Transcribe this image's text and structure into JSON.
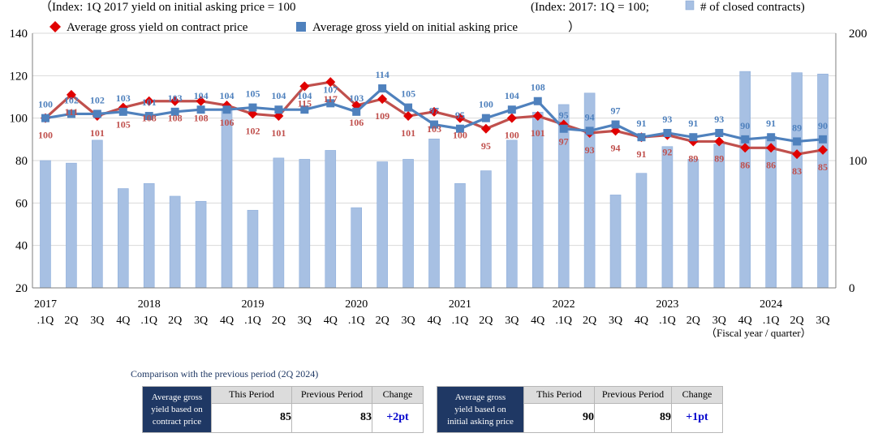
{
  "chart_data": {
    "type": "bar+line",
    "left_axis_caption": "（Index: 1Q 2017 yield on initial asking price = 100",
    "right_axis_caption": "(Index: 2017: 1Q = 100;",
    "bar_legend_label": "# of closed contracts)",
    "x_axis_caption": "（Fiscal year / quarter）",
    "left_axis": {
      "min": 20,
      "max": 140,
      "ticks": [
        "20",
        "40",
        "60",
        "80",
        "100",
        "120",
        "140"
      ]
    },
    "right_axis": {
      "min": 0,
      "max": 200,
      "ticks": [
        "0",
        "100",
        "200"
      ]
    },
    "quarters": [
      "2017.1Q",
      "2Q",
      "3Q",
      "4Q",
      "2018.1Q",
      "2Q",
      "3Q",
      "4Q",
      "2019.1Q",
      "2Q",
      "3Q",
      "4Q",
      "2020.1Q",
      "2Q",
      "3Q",
      "4Q",
      "2021.1Q",
      "2Q",
      "3Q",
      "4Q",
      "2022.1Q",
      "2Q",
      "3Q",
      "4Q",
      "2023.1Q",
      "2Q",
      "3Q",
      "4Q",
      "2024.1Q",
      "2Q",
      "3Q"
    ],
    "tick_labels": [
      {
        "line1": "2017",
        "line2": ".1Q"
      },
      {
        "line1": "",
        "line2": "2Q"
      },
      {
        "line1": "",
        "line2": "3Q"
      },
      {
        "line1": "",
        "line2": "4Q"
      },
      {
        "line1": "2018",
        "line2": ".1Q"
      },
      {
        "line1": "",
        "line2": "2Q"
      },
      {
        "line1": "",
        "line2": "3Q"
      },
      {
        "line1": "",
        "line2": "4Q"
      },
      {
        "line1": "2019",
        "line2": ".1Q"
      },
      {
        "line1": "",
        "line2": "2Q"
      },
      {
        "line1": "",
        "line2": "3Q"
      },
      {
        "line1": "",
        "line2": "4Q"
      },
      {
        "line1": "2020",
        "line2": ".1Q"
      },
      {
        "line1": "",
        "line2": "2Q"
      },
      {
        "line1": "",
        "line2": "3Q"
      },
      {
        "line1": "",
        "line2": "4Q"
      },
      {
        "line1": "2021",
        "line2": ".1Q"
      },
      {
        "line1": "",
        "line2": "2Q"
      },
      {
        "line1": "",
        "line2": "3Q"
      },
      {
        "line1": "",
        "line2": "4Q"
      },
      {
        "line1": "2022",
        "line2": ".1Q"
      },
      {
        "line1": "",
        "line2": "2Q"
      },
      {
        "line1": "",
        "line2": "3Q"
      },
      {
        "line1": "",
        "line2": "4Q"
      },
      {
        "line1": "2023",
        "line2": ".1Q"
      },
      {
        "line1": "",
        "line2": "2Q"
      },
      {
        "line1": "",
        "line2": "3Q"
      },
      {
        "line1": "",
        "line2": "4Q"
      },
      {
        "line1": "2024",
        "line2": ".1Q"
      },
      {
        "line1": "",
        "line2": "2Q"
      },
      {
        "line1": "",
        "line2": "3Q"
      }
    ],
    "series": [
      {
        "name": "Average gross yield on contract price",
        "kind": "line",
        "marker": "diamond",
        "color": "#c0504d",
        "marker_color": "#e00000",
        "label_color": "#c0504d",
        "values": [
          100,
          111,
          101,
          105,
          108,
          108,
          108,
          106,
          102,
          101,
          115,
          117,
          106,
          109,
          101,
          103,
          100,
          95,
          100,
          101,
          97,
          93,
          94,
          91,
          92,
          89,
          89,
          86,
          86,
          83,
          85
        ]
      },
      {
        "name": "Average gross yield on initial asking price",
        "kind": "line",
        "marker": "square",
        "color": "#4f81bd",
        "marker_color": "#4f81bd",
        "label_color": "#4f81bd",
        "values": [
          100,
          102,
          102,
          103,
          101,
          103,
          104,
          104,
          105,
          104,
          104,
          107,
          103,
          114,
          105,
          97,
          95,
          100,
          104,
          108,
          95,
          94,
          97,
          91,
          93,
          91,
          93,
          90,
          91,
          89,
          90
        ]
      },
      {
        "name": "# of closed contracts",
        "kind": "bar",
        "axis": "right",
        "color": "#a7c0e3",
        "values": [
          100,
          98,
          116,
          78,
          82,
          72,
          68,
          141,
          61,
          102,
          101,
          108,
          63,
          99,
          101,
          117,
          82,
          92,
          116,
          138,
          144,
          153,
          73,
          90,
          111,
          101,
          113,
          170,
          119,
          169,
          168
        ]
      }
    ],
    "contract_line_labels": [
      "100",
      "111",
      "101",
      "105",
      "108",
      "108",
      "108",
      "106",
      "102",
      "101",
      "115",
      "117",
      "106",
      "109",
      "101",
      "103",
      "100",
      "95",
      "100",
      "101",
      "97",
      "93",
      "94",
      "91",
      "92",
      "89",
      "89",
      "86",
      "86",
      "83",
      "85"
    ],
    "asking_line_labels": [
      "100",
      "102",
      "102",
      "103",
      "101",
      "103",
      "104",
      "104",
      "105",
      "104",
      "104",
      "107",
      "103",
      "114",
      "105",
      "97",
      "95",
      "100",
      "104",
      "108",
      "95",
      "94",
      "97",
      "91",
      "93",
      "91",
      "93",
      "90",
      "91",
      "89",
      "90"
    ]
  },
  "comparison": {
    "caption": "Comparison with the previous period (2Q 2024)",
    "col_this": "This Period",
    "col_prev": "Previous Period",
    "col_change": "Change",
    "contract": {
      "label_line1": "Average gross",
      "label_line2": "yield based on",
      "label_line3": "contract price",
      "this": "85",
      "prev": "83",
      "change": "+2pt"
    },
    "asking": {
      "label_line1": "Average gross",
      "label_line2": "yield based on",
      "label_line3": "initial asking price",
      "this": "90",
      "prev": "89",
      "change": "+1pt"
    }
  }
}
